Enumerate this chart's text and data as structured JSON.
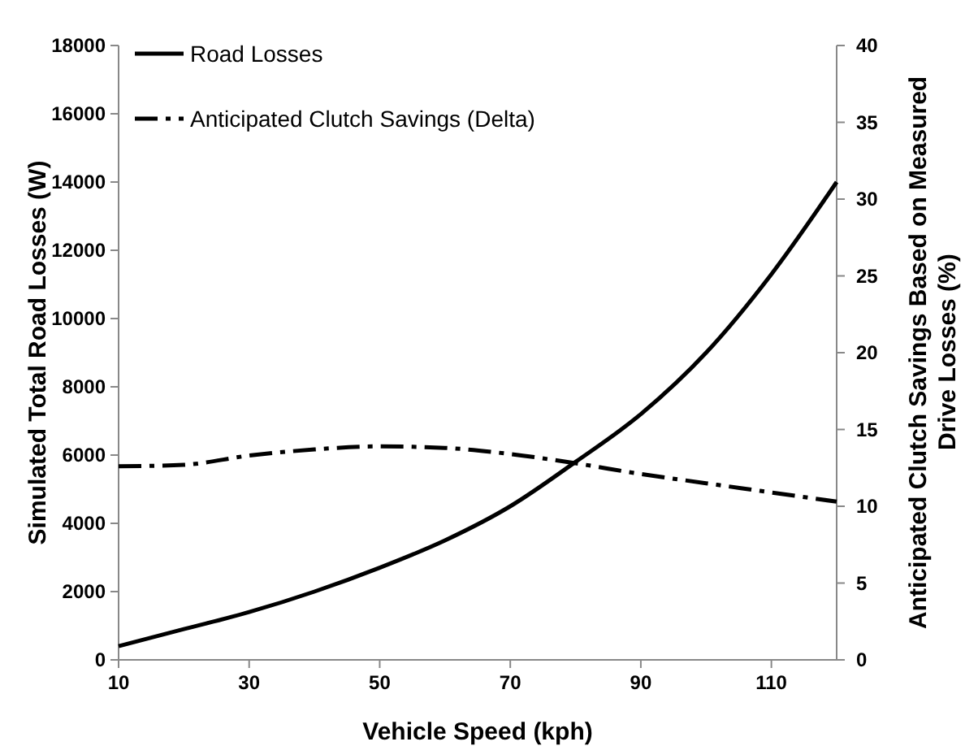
{
  "chart_data": {
    "type": "line",
    "xlabel": "Vehicle Speed (kph)",
    "ylabel": "Simulated Total Road Losses (W)",
    "y2label": "Anticipated Clutch Savings Based on Measured Drive Losses (%)",
    "xlim": [
      10,
      120
    ],
    "xticks": [
      10,
      30,
      50,
      70,
      90,
      110
    ],
    "ylim": [
      0,
      18000
    ],
    "yticks": [
      0,
      2000,
      4000,
      6000,
      8000,
      10000,
      12000,
      14000,
      16000,
      18000
    ],
    "y2lim": [
      0,
      40
    ],
    "y2ticks": [
      0,
      5,
      10,
      15,
      20,
      25,
      30,
      35,
      40
    ],
    "legend": "top left",
    "grid": false,
    "series": [
      {
        "name": "Road Losses",
        "color": "#000000",
        "line_style": "solid",
        "x": [
          10,
          20,
          30,
          40,
          50,
          60,
          70,
          80,
          90,
          100,
          110,
          120
        ],
        "values": [
          400,
          900,
          1400,
          2000,
          2700,
          3500,
          4500,
          5800,
          7200,
          9000,
          11300,
          14000
        ]
      },
      {
        "name": "Anticipated Clutch Savings (Delta)",
        "color": "#000000",
        "line_style": "dashed",
        "axis": "y2",
        "x": [
          10,
          20,
          30,
          40,
          50,
          60,
          70,
          80,
          90,
          100,
          110,
          120
        ],
        "values": [
          12.6,
          12.7,
          13.3,
          13.7,
          13.9,
          13.8,
          13.4,
          12.8,
          12.1,
          11.5,
          10.9,
          10.3
        ]
      }
    ]
  }
}
